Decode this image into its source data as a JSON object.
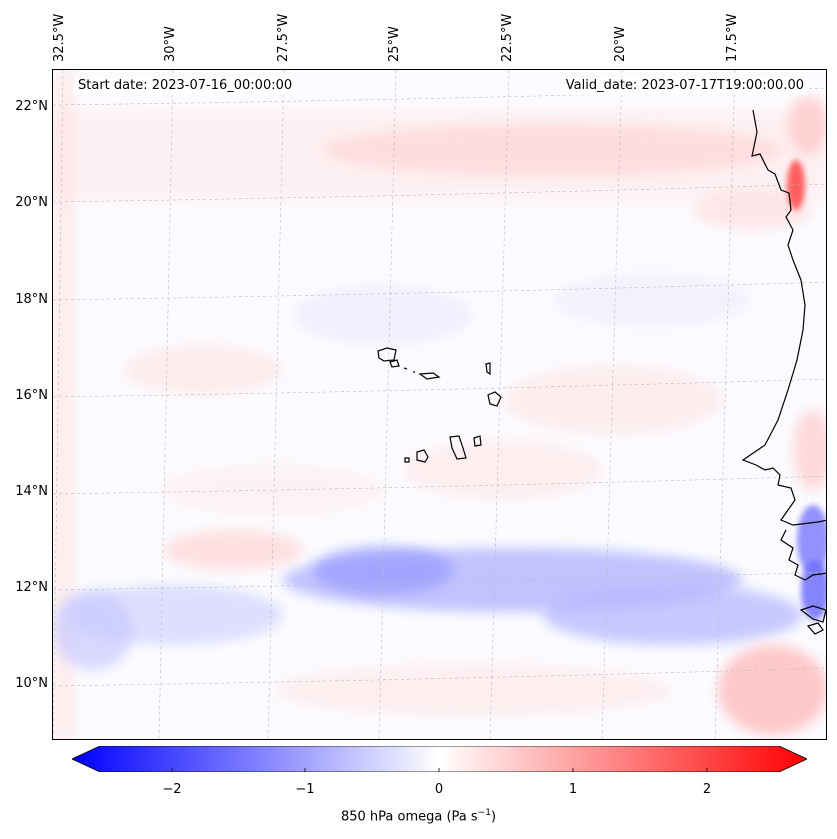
{
  "header": {
    "start_date": "Start date: 2023-07-16_00:00:00",
    "valid_date": "Valid_date: 2023-07-17T19:00:00.00"
  },
  "axes": {
    "lon_labels": [
      "32.5°W",
      "30°W",
      "27.5°W",
      "25°W",
      "22.5°W",
      "20°W",
      "17.5°W"
    ],
    "lat_labels": [
      "22°N",
      "20°N",
      "18°N",
      "16°N",
      "14°N",
      "12°N",
      "10°N"
    ]
  },
  "colorbar": {
    "ticks": [
      "−2",
      "−1",
      "0",
      "1",
      "2"
    ],
    "label_text": "850 hPa omega (Pa s",
    "label_sup": "−1",
    "label_close": ")",
    "range": [
      -2.7,
      2.7
    ],
    "low_color": "#0000ff",
    "high_color": "#ff0000"
  },
  "map": {
    "coastline_color": "#000000",
    "gridline_color": "#bbbbbb"
  }
}
